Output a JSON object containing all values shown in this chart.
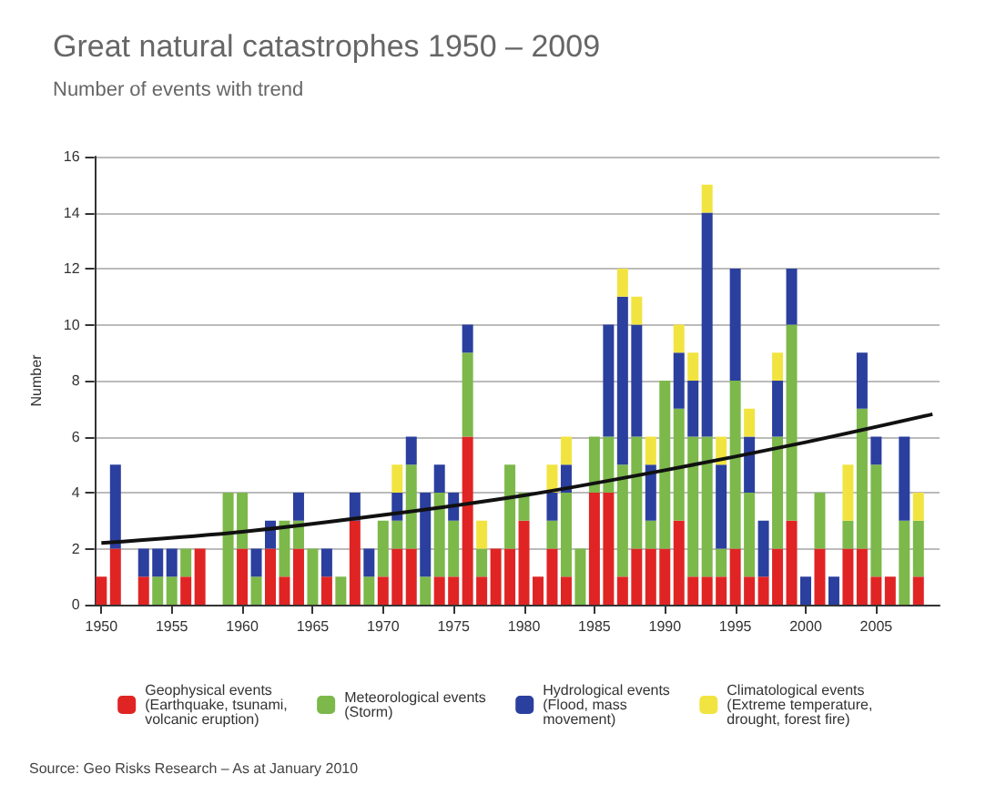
{
  "chart_data": {
    "type": "bar",
    "title": "Great natural catastrophes 1950 – 2009",
    "subtitle": "Number of events with trend",
    "ylabel": "Number",
    "annotations": [
      "Source: Geo Risks Research – As at January 2010"
    ],
    "x": [
      1950,
      1951,
      1952,
      1953,
      1954,
      1955,
      1956,
      1957,
      1958,
      1959,
      1960,
      1961,
      1962,
      1963,
      1964,
      1965,
      1966,
      1967,
      1968,
      1969,
      1970,
      1971,
      1972,
      1973,
      1974,
      1975,
      1976,
      1977,
      1978,
      1979,
      1980,
      1981,
      1982,
      1983,
      1984,
      1985,
      1986,
      1987,
      1988,
      1989,
      1990,
      1991,
      1992,
      1993,
      1994,
      1995,
      1996,
      1997,
      1998,
      1999,
      2000,
      2001,
      2002,
      2003,
      2004,
      2005,
      2006,
      2007,
      2008,
      2009
    ],
    "stacked": true,
    "series": [
      {
        "name": "Geophysical events (Earthquake, tsunami, volcanic eruption)",
        "color": "#e02424",
        "values": [
          1,
          2,
          0,
          1,
          0,
          0,
          1,
          2,
          0,
          0,
          2,
          0,
          2,
          1,
          2,
          0,
          1,
          0,
          3,
          0,
          1,
          2,
          2,
          0,
          1,
          1,
          6,
          1,
          2,
          2,
          3,
          1,
          2,
          1,
          0,
          4,
          4,
          1,
          2,
          2,
          2,
          3,
          1,
          1,
          1,
          2,
          1,
          1,
          2,
          3,
          0,
          2,
          0,
          2,
          2,
          1,
          1,
          0,
          1,
          0
        ]
      },
      {
        "name": "Meteorological events (Storm)",
        "color": "#7cb84a",
        "values": [
          0,
          0,
          0,
          0,
          1,
          1,
          1,
          0,
          0,
          4,
          2,
          1,
          0,
          2,
          1,
          2,
          0,
          1,
          0,
          1,
          2,
          1,
          3,
          1,
          3,
          2,
          3,
          1,
          0,
          3,
          1,
          0,
          1,
          3,
          2,
          2,
          2,
          4,
          4,
          1,
          6,
          4,
          5,
          5,
          1,
          6,
          3,
          0,
          4,
          7,
          0,
          2,
          0,
          1,
          5,
          4,
          0,
          3,
          2,
          0
        ]
      },
      {
        "name": "Hydrological events (Flood, mass movement)",
        "color": "#2b3f9e",
        "values": [
          0,
          3,
          0,
          1,
          1,
          1,
          0,
          0,
          0,
          0,
          0,
          1,
          1,
          0,
          1,
          0,
          1,
          0,
          1,
          1,
          0,
          1,
          1,
          3,
          1,
          1,
          1,
          0,
          0,
          0,
          0,
          0,
          1,
          1,
          0,
          0,
          4,
          6,
          4,
          2,
          0,
          2,
          2,
          8,
          3,
          4,
          2,
          2,
          2,
          2,
          1,
          0,
          1,
          0,
          2,
          1,
          0,
          3,
          0,
          0
        ]
      },
      {
        "name": "Climatological events (Extreme temperature, drought, forest fire)",
        "color": "#f2e440",
        "values": [
          0,
          0,
          0,
          0,
          0,
          0,
          0,
          0,
          0,
          0,
          0,
          0,
          0,
          0,
          0,
          0,
          0,
          0,
          0,
          0,
          0,
          1,
          0,
          0,
          0,
          0,
          0,
          1,
          0,
          0,
          0,
          0,
          1,
          1,
          0,
          0,
          0,
          1,
          1,
          1,
          0,
          1,
          1,
          1,
          1,
          0,
          1,
          0,
          1,
          0,
          0,
          0,
          0,
          2,
          0,
          0,
          0,
          0,
          1,
          0
        ]
      },
      {
        "type": "line",
        "color": "#111111",
        "x": [
          1950,
          1960,
          1970,
          1980,
          1990,
          2000,
          2009
        ],
        "values": [
          2.2,
          2.6,
          3.2,
          3.9,
          4.8,
          5.8,
          6.8
        ]
      }
    ],
    "xlim": [
      1949.5,
      2009.5
    ],
    "xticks": [
      1950,
      1955,
      1960,
      1965,
      1970,
      1975,
      1980,
      1985,
      1990,
      1995,
      2000,
      2005
    ],
    "ylim": [
      0,
      16
    ],
    "yticks": [
      0,
      2,
      4,
      6,
      8,
      10,
      12,
      14,
      16
    ],
    "grid": "y",
    "legend": "bottom",
    "marker": "none"
  }
}
